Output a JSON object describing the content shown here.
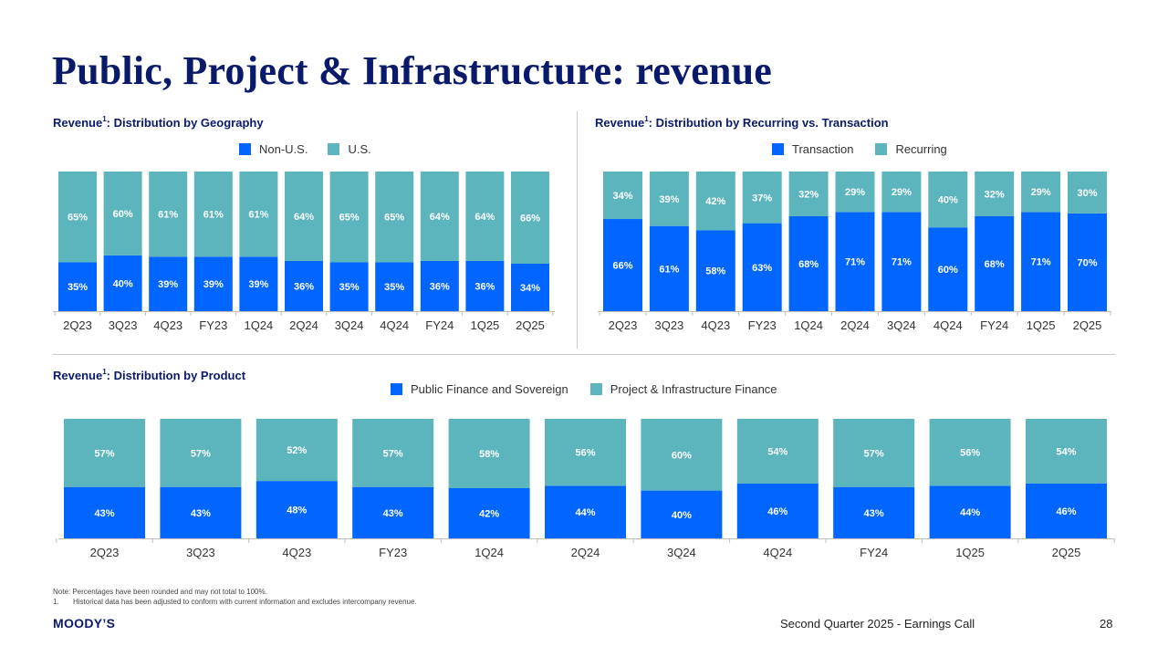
{
  "page": {
    "title": "Public, Project & Infrastructure: revenue",
    "note": "Note: Percentages have been rounded and may not total to 100%.",
    "footnote_number": "1.",
    "footnote_text": "Historical data has been adjusted to conform with current information and excludes intercompany revenue.",
    "logo": "MOODY’S",
    "footer": "Second Quarter 2025 - Earnings Call",
    "page_number": "28"
  },
  "colors": {
    "blue": "#0066ff",
    "teal": "#5cb5bc",
    "title": "#0a1a6b"
  },
  "chart_data": [
    {
      "type": "bar",
      "stacked": true,
      "title_main": "Revenue",
      "title_sup": "1",
      "title_rest": ": Distribution by Geography",
      "categories": [
        "2Q23",
        "3Q23",
        "4Q23",
        "FY23",
        "1Q24",
        "2Q24",
        "3Q24",
        "4Q24",
        "FY24",
        "1Q25",
        "2Q25"
      ],
      "series": [
        {
          "name": "Non-U.S.",
          "color": "#0066ff",
          "values": [
            35,
            40,
            39,
            39,
            39,
            36,
            35,
            35,
            36,
            36,
            34
          ]
        },
        {
          "name": "U.S.",
          "color": "#5cb5bc",
          "values": [
            65,
            60,
            61,
            61,
            61,
            64,
            65,
            65,
            64,
            64,
            66
          ]
        }
      ],
      "ylim": [
        0,
        100
      ],
      "unit": "%"
    },
    {
      "type": "bar",
      "stacked": true,
      "title_main": "Revenue",
      "title_sup": "1",
      "title_rest": ": Distribution by Recurring vs. Transaction",
      "categories": [
        "2Q23",
        "3Q23",
        "4Q23",
        "FY23",
        "1Q24",
        "2Q24",
        "3Q24",
        "4Q24",
        "FY24",
        "1Q25",
        "2Q25"
      ],
      "series": [
        {
          "name": "Transaction",
          "color": "#0066ff",
          "values": [
            66,
            61,
            58,
            63,
            68,
            71,
            71,
            60,
            68,
            71,
            70
          ]
        },
        {
          "name": "Recurring",
          "color": "#5cb5bc",
          "values": [
            34,
            39,
            42,
            37,
            32,
            29,
            29,
            40,
            32,
            29,
            30
          ]
        }
      ],
      "ylim": [
        0,
        100
      ],
      "unit": "%"
    },
    {
      "type": "bar",
      "stacked": true,
      "title_main": "Revenue",
      "title_sup": "1",
      "title_rest": ": Distribution by Product",
      "categories": [
        "2Q23",
        "3Q23",
        "4Q23",
        "FY23",
        "1Q24",
        "2Q24",
        "3Q24",
        "4Q24",
        "FY24",
        "1Q25",
        "2Q25"
      ],
      "series": [
        {
          "name": "Public Finance and Sovereign",
          "color": "#0066ff",
          "values": [
            43,
            43,
            48,
            43,
            42,
            44,
            40,
            46,
            43,
            44,
            46
          ]
        },
        {
          "name": "Project & Infrastructure Finance",
          "color": "#5cb5bc",
          "values": [
            57,
            57,
            52,
            57,
            58,
            56,
            60,
            54,
            57,
            56,
            54
          ]
        }
      ],
      "ylim": [
        0,
        100
      ],
      "unit": "%"
    }
  ]
}
